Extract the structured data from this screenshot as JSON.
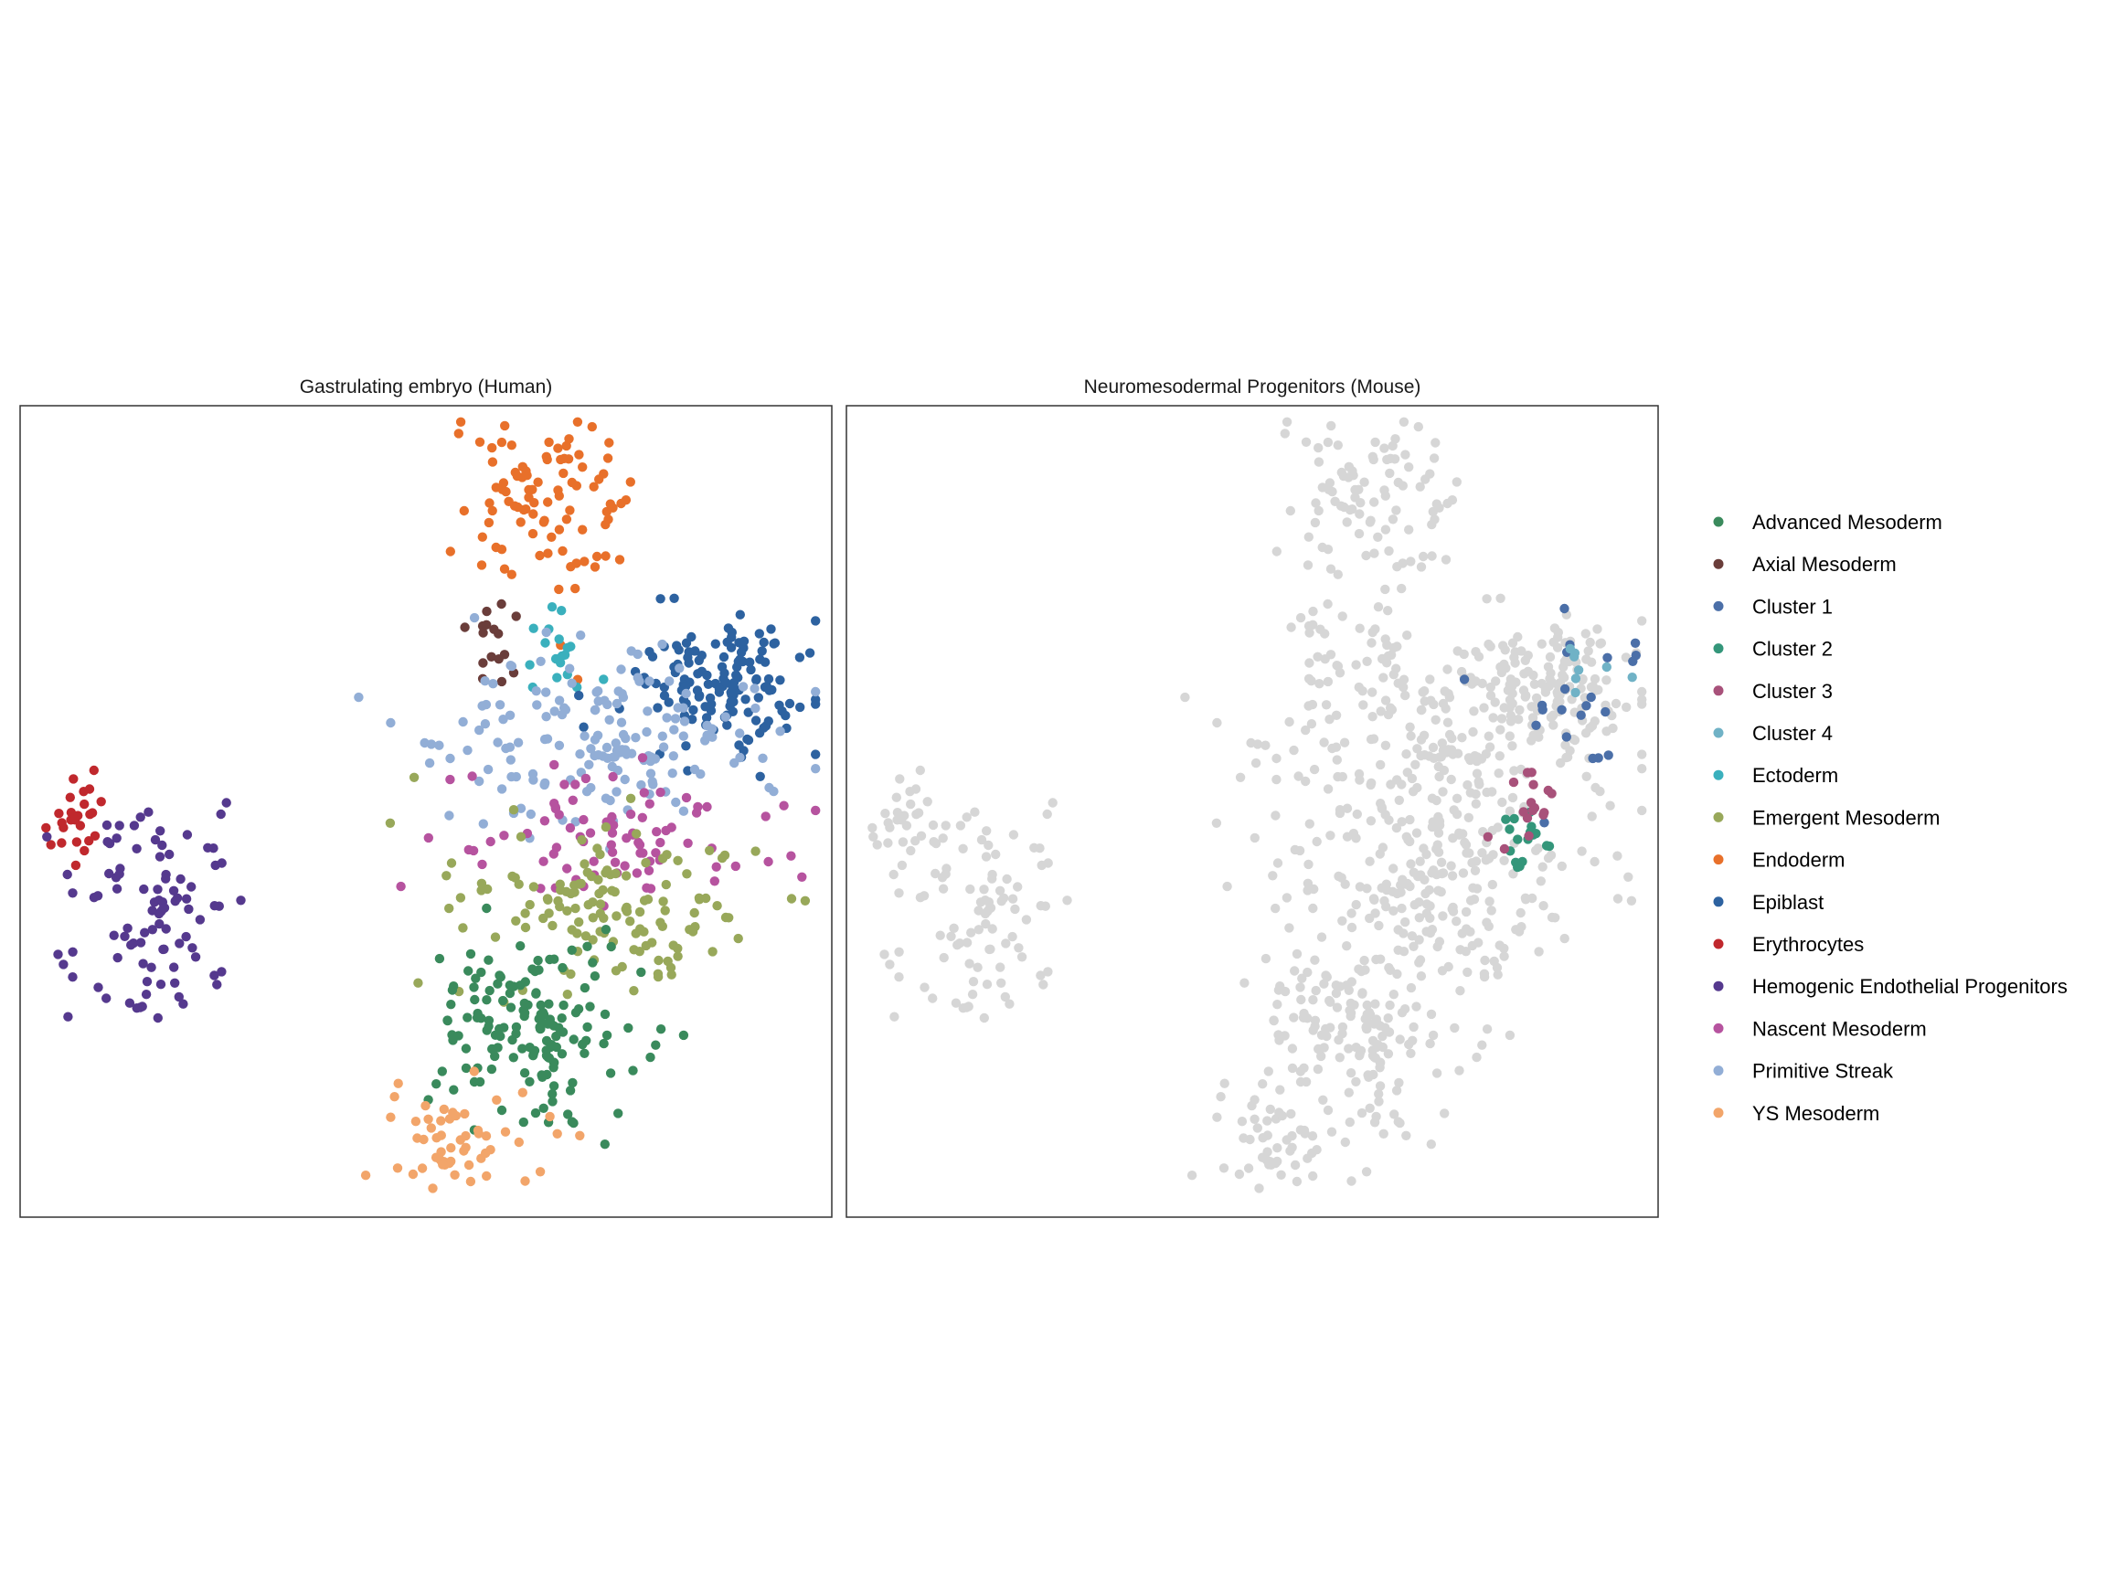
{
  "chart_data": [
    {
      "type": "scatter",
      "title": "Gastrulating embryo (Human)",
      "xlabel": "",
      "ylabel": "",
      "axes": "none",
      "grid": false,
      "point_groups": [
        {
          "name": "Endoderm",
          "color": "#E8702A",
          "n": 95,
          "center": [
            0.64,
            0.88
          ],
          "spread": [
            0.05,
            0.06
          ]
        },
        {
          "name": "Axial Mesoderm",
          "color": "#6A3D3A",
          "n": 16,
          "center": [
            0.58,
            0.7
          ],
          "spread": [
            0.012,
            0.03
          ]
        },
        {
          "name": "Ectoderm",
          "color": "#3AB0BD",
          "n": 18,
          "center": [
            0.66,
            0.69
          ],
          "spread": [
            0.02,
            0.02
          ]
        },
        {
          "name": "Epiblast",
          "color": "#2D62A0",
          "n": 140,
          "center": [
            0.87,
            0.66
          ],
          "spread": [
            0.06,
            0.04
          ]
        },
        {
          "name": "Primitive Streak",
          "color": "#92AED6",
          "n": 165,
          "center": [
            0.72,
            0.58
          ],
          "spread": [
            0.1,
            0.05
          ]
        },
        {
          "name": "Nascent Mesoderm",
          "color": "#B6539F",
          "n": 85,
          "center": [
            0.74,
            0.47
          ],
          "spread": [
            0.1,
            0.04
          ]
        },
        {
          "name": "Emergent Mesoderm",
          "color": "#98A85A",
          "n": 135,
          "center": [
            0.72,
            0.38
          ],
          "spread": [
            0.1,
            0.05
          ]
        },
        {
          "name": "Advanced Mesoderm",
          "color": "#3A8A5C",
          "n": 155,
          "center": [
            0.64,
            0.24
          ],
          "spread": [
            0.07,
            0.06
          ]
        },
        {
          "name": "YS Mesoderm",
          "color": "#F2A56A",
          "n": 55,
          "center": [
            0.54,
            0.09
          ],
          "spread": [
            0.05,
            0.035
          ]
        },
        {
          "name": "Erythrocytes",
          "color": "#C0282D",
          "n": 25,
          "center": [
            0.07,
            0.49
          ],
          "spread": [
            0.02,
            0.03
          ]
        },
        {
          "name": "Hemogenic Endothelial Progenitors",
          "color": "#55398E",
          "n": 95,
          "center": [
            0.16,
            0.38
          ],
          "spread": [
            0.05,
            0.07
          ]
        }
      ]
    },
    {
      "type": "scatter",
      "title": "Neuromesodermal Progenitors (Mouse)",
      "xlabel": "",
      "ylabel": "",
      "axes": "none",
      "grid": false,
      "background_color": "#D6D6D6",
      "point_groups": [
        {
          "name": "Cluster 1",
          "color": "#4B6FA8",
          "n": 22,
          "center": [
            0.9,
            0.62
          ],
          "spread": [
            0.04,
            0.05
          ]
        },
        {
          "name": "Cluster 2",
          "color": "#34967A",
          "n": 18,
          "center": [
            0.84,
            0.47
          ],
          "spread": [
            0.015,
            0.03
          ]
        },
        {
          "name": "Cluster 3",
          "color": "#A8517A",
          "n": 16,
          "center": [
            0.84,
            0.5
          ],
          "spread": [
            0.015,
            0.02
          ]
        },
        {
          "name": "Cluster 4",
          "color": "#70B2C6",
          "n": 8,
          "center": [
            0.89,
            0.66
          ],
          "spread": [
            0.03,
            0.02
          ]
        }
      ]
    }
  ],
  "legend": {
    "placement": "right",
    "entries": [
      {
        "label": "Advanced Mesoderm",
        "color": "#3A8A5C"
      },
      {
        "label": "Axial Mesoderm",
        "color": "#6A3D3A"
      },
      {
        "label": "Cluster 1",
        "color": "#4B6FA8"
      },
      {
        "label": "Cluster 2",
        "color": "#34967A"
      },
      {
        "label": "Cluster 3",
        "color": "#A8517A"
      },
      {
        "label": "Cluster 4",
        "color": "#70B2C6"
      },
      {
        "label": "Ectoderm",
        "color": "#3AB0BD"
      },
      {
        "label": "Emergent Mesoderm",
        "color": "#98A85A"
      },
      {
        "label": "Endoderm",
        "color": "#E8702A"
      },
      {
        "label": "Epiblast",
        "color": "#2D62A0"
      },
      {
        "label": "Erythrocytes",
        "color": "#C0282D"
      },
      {
        "label": "Hemogenic Endothelial Progenitors",
        "color": "#55398E"
      },
      {
        "label": "Nascent Mesoderm",
        "color": "#B6539F"
      },
      {
        "label": "Primitive Streak",
        "color": "#92AED6"
      },
      {
        "label": "YS Mesoderm",
        "color": "#F2A56A"
      }
    ]
  }
}
